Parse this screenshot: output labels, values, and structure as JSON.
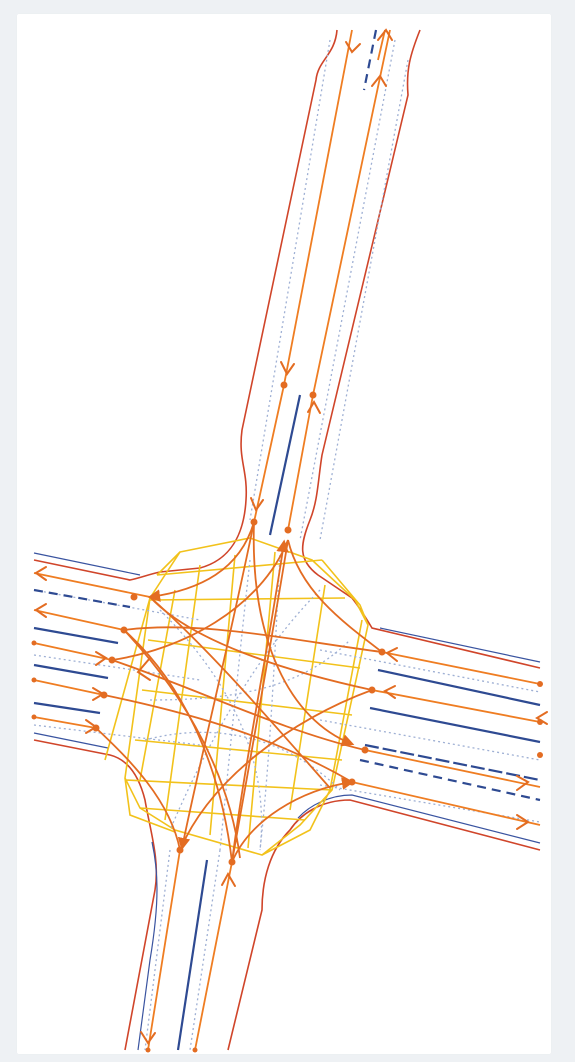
{
  "diagram": {
    "kind": "road-intersection-lane-graph",
    "colors": {
      "background": "#eef1f4",
      "canvas": "#ffffff",
      "road_edge": "#d0452a",
      "road_edge_alt": "#3a54a0",
      "lane_divider": "#2e4a92",
      "lane_centerline": "#ef7d22",
      "connector": "#e36c22",
      "junction_polygon": "#f2c21b",
      "dotted_guide": "#9fb0d4"
    },
    "roads": [
      {
        "name": "north-arm",
        "direction": "north-south"
      },
      {
        "name": "south-arm",
        "direction": "north-south"
      },
      {
        "name": "west-arm",
        "direction": "east-west"
      },
      {
        "name": "east-arm",
        "direction": "east-west"
      }
    ],
    "junction": {
      "name": "central-junction",
      "has_crosswalks": true
    }
  }
}
